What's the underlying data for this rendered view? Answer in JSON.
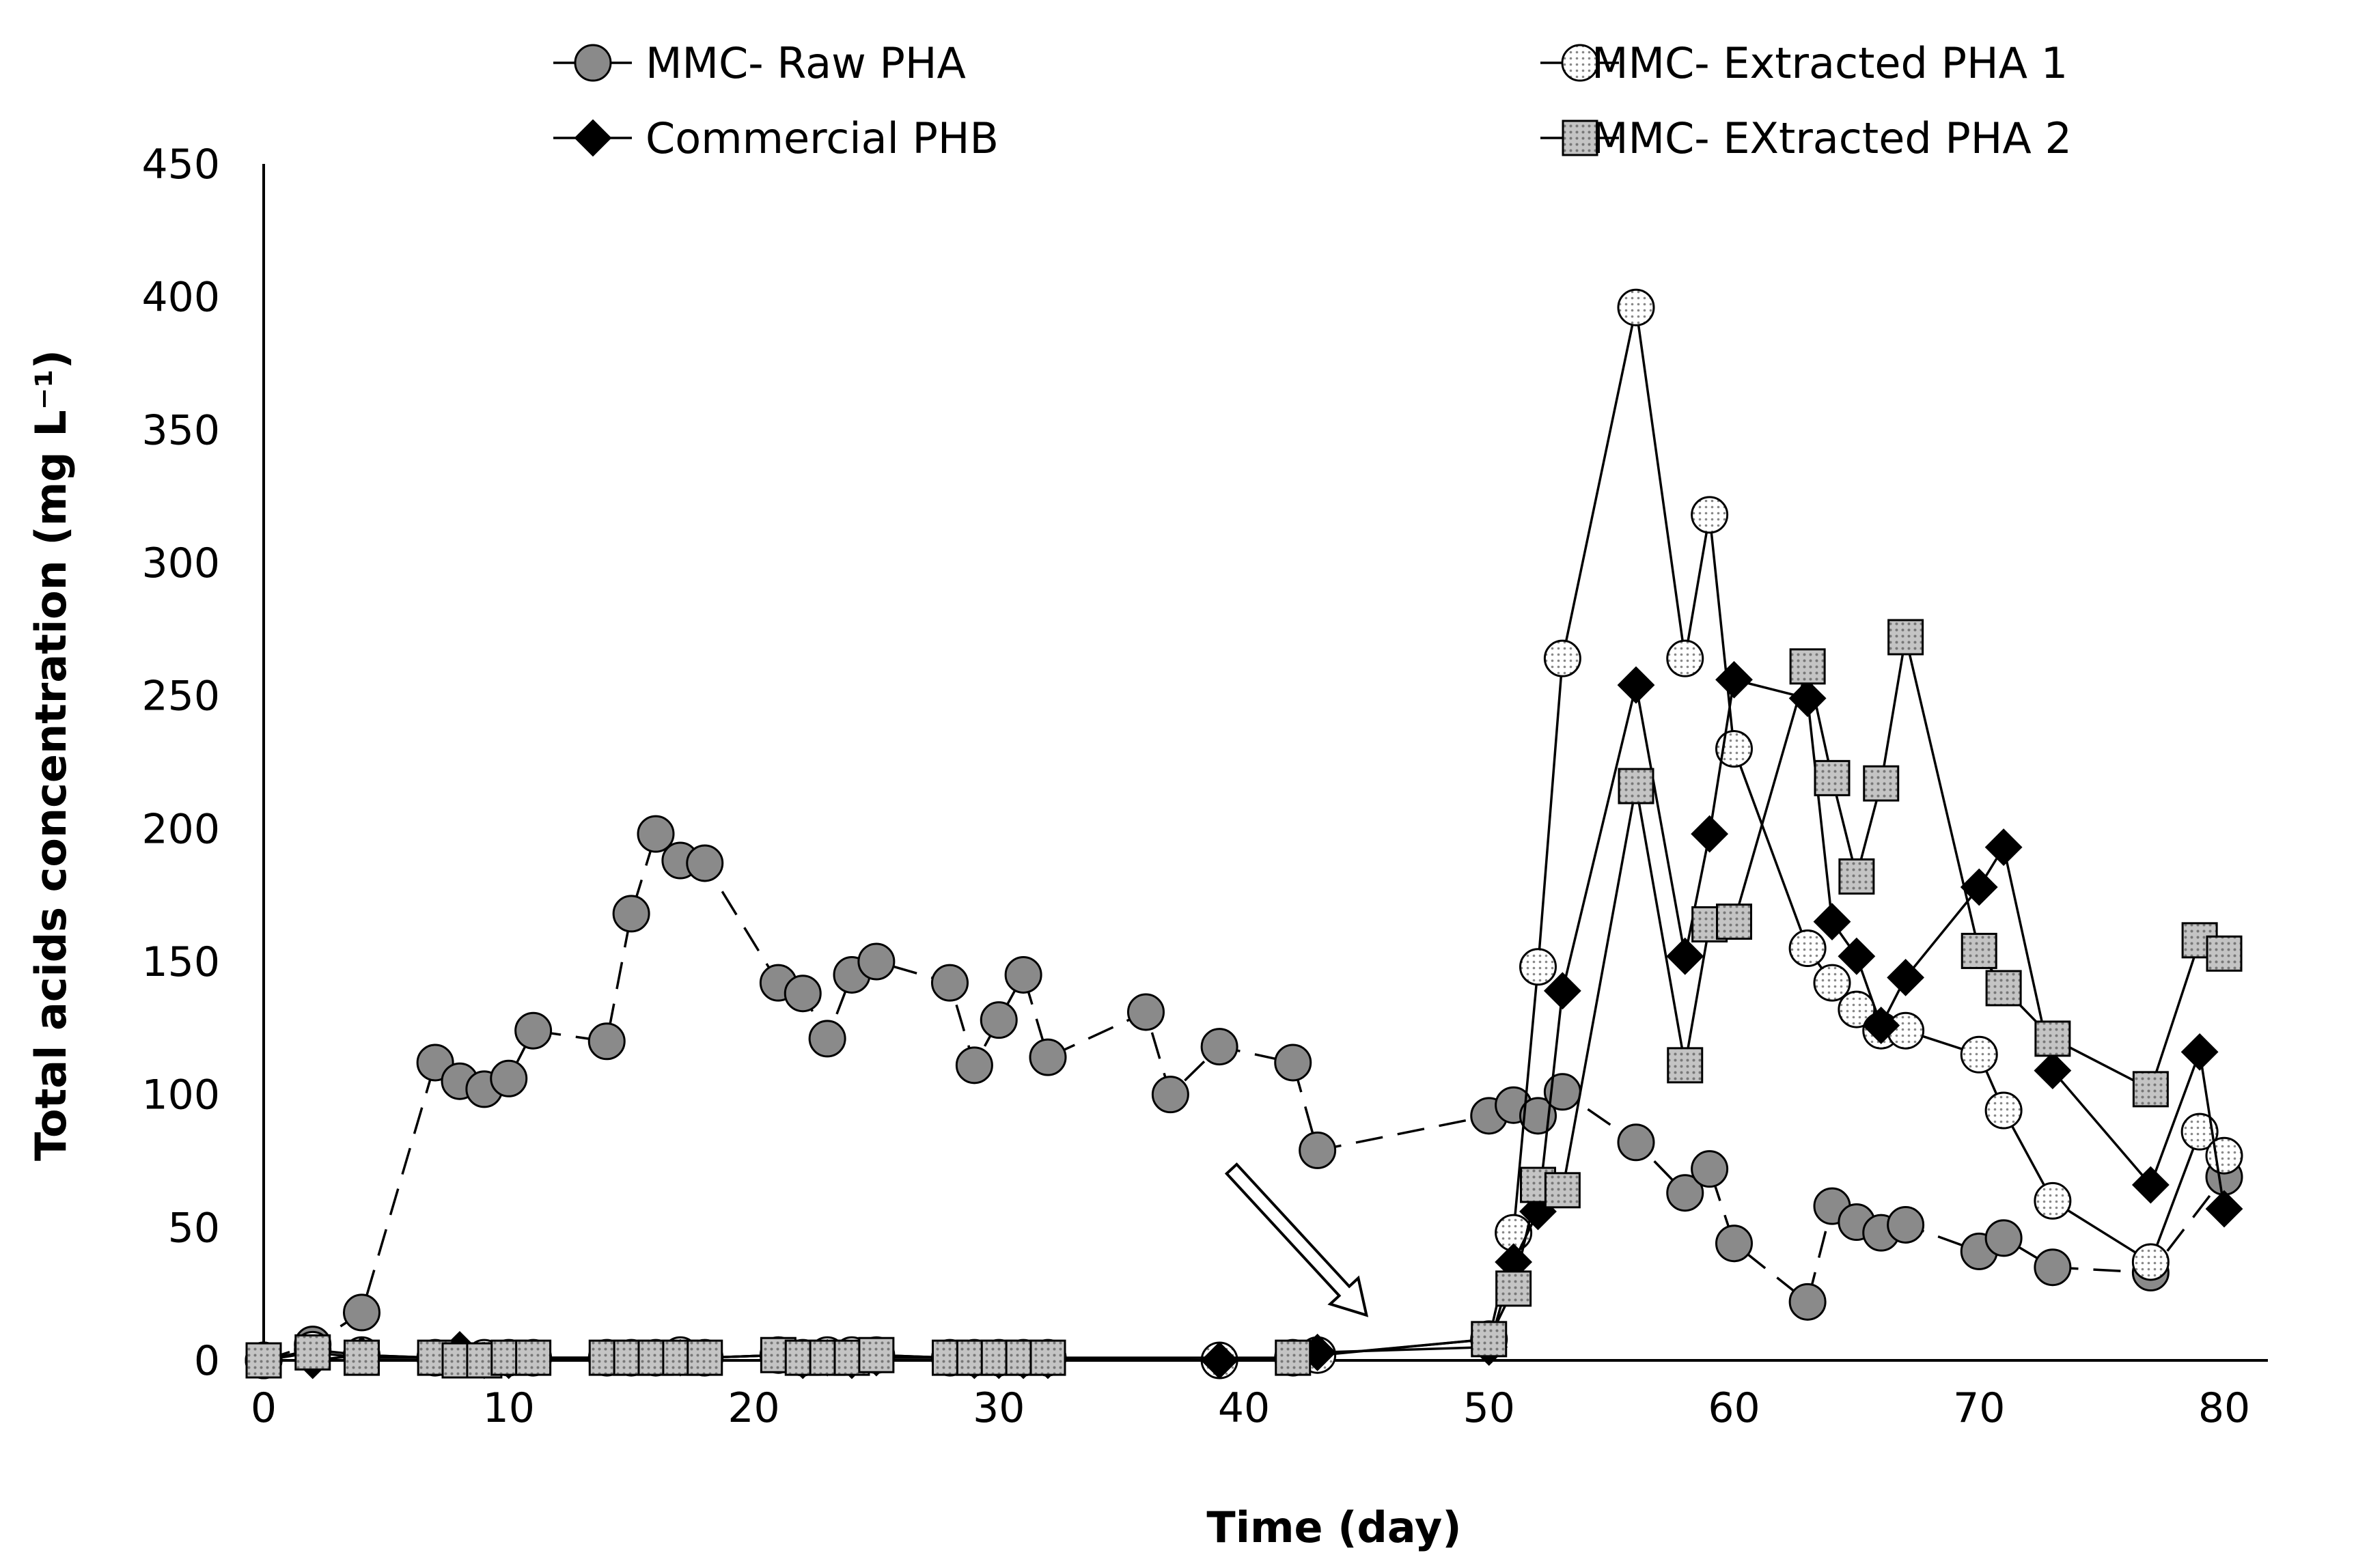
{
  "chart_data": {
    "type": "line",
    "xlabel": "Time (day)",
    "ylabel": "Total acids concentration (mg L⁻¹)",
    "xlim": [
      0,
      85
    ],
    "ylim": [
      0,
      450
    ],
    "xticks": [
      0,
      10,
      20,
      30,
      40,
      50,
      60,
      70,
      80
    ],
    "yticks": [
      0,
      50,
      100,
      150,
      200,
      250,
      300,
      350,
      400,
      450
    ],
    "grid": false,
    "legend_position": "top",
    "annotations": [
      {
        "type": "hollow-arrow",
        "from": [
          39.5,
          72
        ],
        "to": [
          45,
          17
        ]
      }
    ],
    "series": [
      {
        "name": "MMC- Raw PHA",
        "marker": "circle",
        "fill": "#8a8a8a",
        "line": "dashed",
        "x": [
          0,
          2,
          4,
          7,
          8,
          9,
          10,
          11,
          14,
          15,
          16,
          17,
          18,
          21,
          22,
          23,
          24,
          25,
          28,
          29,
          30,
          31,
          32,
          36,
          37,
          39,
          42,
          43,
          50,
          51,
          52,
          53,
          56,
          58,
          59,
          60,
          63,
          64,
          65,
          66,
          67,
          70,
          71,
          73,
          77,
          80
        ],
        "values": [
          0,
          6,
          18,
          112,
          105,
          102,
          106,
          124,
          120,
          168,
          198,
          188,
          187,
          142,
          138,
          121,
          145,
          150,
          142,
          111,
          128,
          145,
          114,
          131,
          100,
          118,
          112,
          79,
          92,
          96,
          92,
          101,
          82,
          63,
          72,
          44,
          22,
          58,
          52,
          48,
          51,
          41,
          46,
          35,
          33,
          69
        ]
      },
      {
        "name": "MMC- Extracted PHA 1",
        "marker": "circle-dotted",
        "fill": "#ffffff",
        "line": "solid",
        "x": [
          0,
          2,
          4,
          7,
          8,
          9,
          10,
          11,
          14,
          15,
          16,
          17,
          18,
          21,
          22,
          23,
          24,
          25,
          28,
          29,
          30,
          31,
          32,
          39,
          42,
          43,
          50,
          51,
          52,
          53,
          56,
          58,
          59,
          60,
          63,
          64,
          65,
          66,
          67,
          70,
          71,
          73,
          77,
          79,
          80
        ],
        "values": [
          0,
          4,
          2,
          1,
          1,
          1,
          1,
          1,
          1,
          1,
          1,
          2,
          1,
          2,
          1,
          2,
          2,
          2,
          1,
          1,
          1,
          1,
          1,
          0,
          1,
          2,
          8,
          48,
          148,
          264,
          396,
          264,
          318,
          230,
          155,
          142,
          132,
          124,
          124,
          115,
          94,
          60,
          37,
          86,
          77
        ]
      },
      {
        "name": "Commercial PHB",
        "marker": "diamond",
        "fill": "#000000",
        "line": "solid",
        "x": [
          0,
          2,
          4,
          7,
          8,
          9,
          10,
          11,
          14,
          15,
          16,
          17,
          18,
          21,
          22,
          23,
          24,
          25,
          28,
          29,
          30,
          31,
          32,
          39,
          42,
          43,
          50,
          51,
          52,
          53,
          56,
          58,
          59,
          60,
          63,
          64,
          65,
          66,
          67,
          70,
          71,
          73,
          77,
          79,
          80
        ],
        "values": [
          0,
          0,
          2,
          1,
          4,
          0,
          0,
          1,
          1,
          1,
          1,
          1,
          1,
          2,
          0,
          1,
          0,
          1,
          1,
          0,
          0,
          0,
          0,
          0,
          1,
          3,
          5,
          37,
          56,
          139,
          254,
          152,
          198,
          256,
          249,
          165,
          152,
          126,
          144,
          178,
          193,
          109,
          66,
          116,
          57
        ]
      },
      {
        "name": "MMC- EXtracted PHA 2",
        "marker": "square-dotted",
        "fill": "#bdbdbd",
        "line": "solid",
        "x": [
          0,
          2,
          4,
          7,
          8,
          9,
          10,
          11,
          14,
          15,
          16,
          17,
          18,
          21,
          22,
          23,
          24,
          25,
          28,
          29,
          30,
          31,
          32,
          42,
          50,
          51,
          52,
          53,
          56,
          58,
          59,
          60,
          63,
          64,
          65,
          66,
          67,
          70,
          71,
          73,
          77,
          79,
          80
        ],
        "values": [
          0,
          3,
          1,
          1,
          0,
          0,
          1,
          1,
          1,
          1,
          1,
          1,
          1,
          2,
          1,
          1,
          1,
          2,
          1,
          1,
          1,
          1,
          1,
          1,
          8,
          27,
          66,
          64,
          216,
          111,
          164,
          165,
          261,
          219,
          182,
          217,
          272,
          154,
          140,
          121,
          102,
          158,
          153
        ]
      }
    ]
  }
}
